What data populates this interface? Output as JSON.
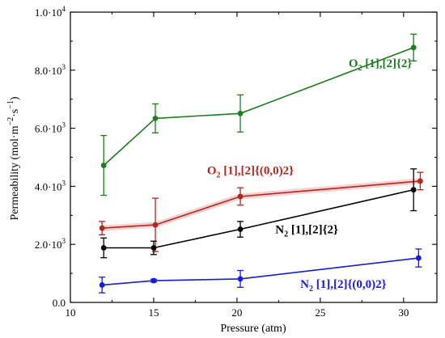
{
  "chart_data": {
    "type": "line",
    "title": "",
    "xlabel": "Pressure (atm)",
    "ylabel_parts": {
      "base": "Permeability (mol·m",
      "exp1": "−2",
      "mid": "·s",
      "exp2": "−1",
      "end": ")"
    },
    "xlim": [
      10,
      32
    ],
    "ylim": [
      0,
      10000
    ],
    "x_ticks": [
      10,
      15,
      20,
      25,
      30
    ],
    "y_ticks": [
      {
        "value": 0,
        "mantissa": "0.0",
        "exp": ""
      },
      {
        "value": 2000,
        "mantissa": "2.0·10",
        "exp": "3"
      },
      {
        "value": 4000,
        "mantissa": "4.0·10",
        "exp": "3"
      },
      {
        "value": 6000,
        "mantissa": "6.0·10",
        "exp": "3"
      },
      {
        "value": 8000,
        "mantissa": "8.0·10",
        "exp": "3"
      },
      {
        "value": 10000,
        "mantissa": "1.0·10",
        "exp": "4"
      }
    ],
    "grid": false,
    "series": [
      {
        "label_main": "O",
        "label_sub": "2",
        "label_rest": " [1],[2]{2}",
        "color": "#1e7d1e",
        "halo": false,
        "label_pos": {
          "x": 26.7,
          "y": 8100
        },
        "points": [
          {
            "x": 12.0,
            "y": 4720,
            "err": 1030
          },
          {
            "x": 15.1,
            "y": 6340,
            "err": 500
          },
          {
            "x": 20.2,
            "y": 6510,
            "err": 640
          },
          {
            "x": 30.6,
            "y": 8780,
            "err": 460
          }
        ]
      },
      {
        "label_main": "O",
        "label_sub": "2",
        "label_rest": " [1],[2]{(0,0)2}",
        "color": "#b3261e",
        "halo": true,
        "label_pos": {
          "x": 18.2,
          "y": 4420
        },
        "points": [
          {
            "x": 11.9,
            "y": 2560,
            "err": 230
          },
          {
            "x": 15.1,
            "y": 2670,
            "err": 920
          },
          {
            "x": 20.2,
            "y": 3650,
            "err": 300
          },
          {
            "x": 31.0,
            "y": 4180,
            "err": 300
          }
        ]
      },
      {
        "label_main": "N",
        "label_sub": "2",
        "label_rest": " [1],[2]{2}",
        "color": "#000000",
        "halo": false,
        "label_pos": {
          "x": 22.3,
          "y": 2380
        },
        "points": [
          {
            "x": 12.0,
            "y": 1880,
            "err": 340
          },
          {
            "x": 15.0,
            "y": 1880,
            "err": 230
          },
          {
            "x": 20.2,
            "y": 2520,
            "err": 270
          },
          {
            "x": 30.6,
            "y": 3880,
            "err": 720
          }
        ]
      },
      {
        "label_main": "N",
        "label_sub": "2",
        "label_rest": " [1],[2]{(0,0)2}",
        "color": "#1a1adb",
        "halo": false,
        "label_pos": {
          "x": 23.8,
          "y": 500
        },
        "points": [
          {
            "x": 11.9,
            "y": 600,
            "err": 270
          },
          {
            "x": 15.0,
            "y": 750,
            "err": 50
          },
          {
            "x": 20.2,
            "y": 810,
            "err": 290
          },
          {
            "x": 30.9,
            "y": 1530,
            "err": 310
          }
        ]
      }
    ]
  }
}
